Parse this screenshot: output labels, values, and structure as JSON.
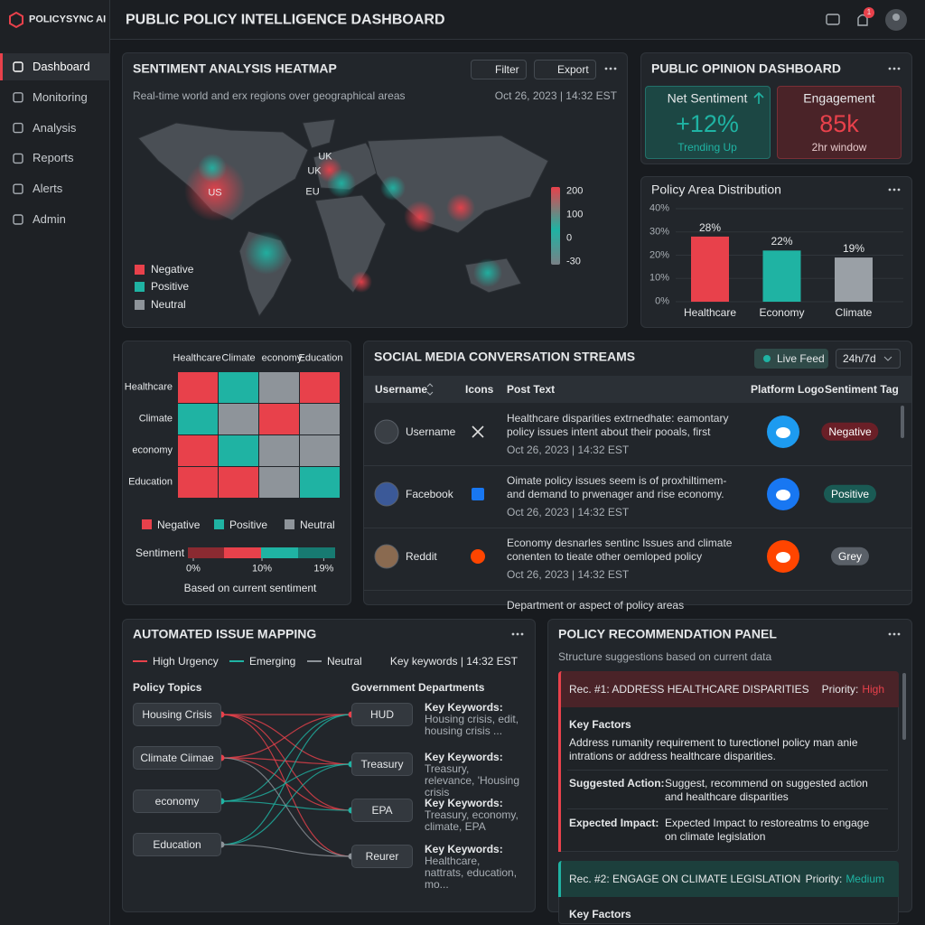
{
  "brand": "POLICYSYNC AI",
  "header": {
    "title": "PUBLIC POLICY INTELLIGENCE DASHBOARD",
    "notification_count": "1"
  },
  "nav": [
    "Dashboard",
    "Monitoring",
    "Analysis",
    "Reports",
    "Alerts",
    "Admin"
  ],
  "heatmap_panel": {
    "title": "SENTIMENT ANALYSIS HEATMAP",
    "filter": "Filter",
    "export": "Export",
    "subtitle": "Real-time world and erx regions over geographical areas",
    "timestamp": "Oct 26, 2023 | 14:32 EST",
    "regions": [
      "UK",
      "UK",
      "EU",
      "US"
    ],
    "legend": [
      "Negative",
      "Positive",
      "Neutral"
    ],
    "scale_ticks": [
      200,
      100,
      0,
      -30
    ]
  },
  "opinion": {
    "title": "PUBLIC OPINION DASHBOARD",
    "net_label": "Net Sentiment",
    "net_value": "+12%",
    "net_note": "Trending Up",
    "eng_label": "Engagement",
    "eng_value": "85k",
    "eng_note": "2hr window"
  },
  "policy_distribution": {
    "title": "Policy Area Distribution",
    "categories": [
      "Healthcare",
      "Economy",
      "Climate"
    ],
    "values": [
      28,
      22,
      19
    ],
    "value_labels": [
      "28%",
      "22%",
      "19%"
    ],
    "colors": [
      "#e8414b",
      "#1fb3a3",
      "#9aa0a6"
    ],
    "ylim": [
      0,
      40
    ],
    "yticks": [
      {
        "value": 0,
        "label": "0%"
      },
      {
        "value": 10,
        "label": "10%"
      },
      {
        "value": 20,
        "label": "20%"
      },
      {
        "value": 30,
        "label": "30%"
      },
      {
        "value": 40,
        "label": "40%"
      }
    ]
  },
  "matrix": {
    "columns": [
      "Healthcare",
      "Climate",
      "economy",
      "Education"
    ],
    "rows": [
      "Healthcare",
      "Climate",
      "economy",
      "Education"
    ],
    "cells": [
      [
        "negative",
        "positive",
        "neutral",
        "negative"
      ],
      [
        "positive",
        "neutral",
        "negative",
        "neutral"
      ],
      [
        "negative",
        "positive",
        "neutral",
        "neutral"
      ],
      [
        "negative",
        "negative",
        "neutral",
        "positive"
      ]
    ],
    "legend": [
      "Negative",
      "Positive",
      "Neutral"
    ],
    "sentiment_label": "Sentiment",
    "scale_ticks": [
      {
        "value": 0,
        "label": "0%"
      },
      {
        "value": 10,
        "label": "10%"
      },
      {
        "value": 19,
        "label": "19%"
      }
    ],
    "note": "Based on current sentiment"
  },
  "streams": {
    "title": "SOCIAL MEDIA CONVERSATION STREAMS",
    "live": "Live Feed",
    "range": "24h/7d",
    "columns": [
      "Username",
      "Icons",
      "Post Text",
      "Platform Logo",
      "Sentiment Tag"
    ],
    "rows": [
      {
        "user": "Username",
        "platform": "twitter",
        "post": "Healthcare disparities extrnedhate: eamontary policy issues intent about their pooals, first trude...",
        "time": "Oct 26, 2023 | 14:32 EST",
        "tag": "Negative",
        "tone": "negative"
      },
      {
        "user": "Facebook",
        "platform": "facebook",
        "post": "Oimate policy issues seem is of proxhiltimem-and demand to prwenager and rise economy.",
        "time": "Oct 26, 2023 | 14:32 EST",
        "tag": "Positive",
        "tone": "positive"
      },
      {
        "user": "Reddit",
        "platform": "reddit",
        "post": "Economy desnarles sentinc Issues and climate conenten to tieate other oemloped policy insukes...",
        "time": "Oct 26, 2023 | 14:32 EST",
        "tag": "Grey",
        "tone": "neutral"
      },
      {
        "post": "Department or aspect of policy areas"
      }
    ]
  },
  "issue_mapping": {
    "title": "AUTOMATED ISSUE MAPPING",
    "legend": [
      "High Urgency",
      "Emerging",
      "Neutral"
    ],
    "keywords_time": "Key keywords | 14:32 EST",
    "topics_heading": "Policy Topics",
    "departments_heading": "Government Departments",
    "topics": [
      "Housing Crisis",
      "Climate Ciimae",
      "economy",
      "Education"
    ],
    "departments": [
      {
        "name": "HUD",
        "keywords_label": "Key Keywords:",
        "keywords": "Housing crisis, edit, housing crisis ..."
      },
      {
        "name": "Treasury",
        "keywords_label": "Key Keywords:",
        "keywords": "Treasury, relevance, 'Housing crisis"
      },
      {
        "name": "EPA",
        "keywords_label": "Key Keywords:",
        "keywords": "Treasury, economy, climate, EPA"
      },
      {
        "name": "Reurer",
        "keywords_label": "Key Keywords:",
        "keywords": "Healthcare, nattrats, education, mo..."
      }
    ]
  },
  "recommendations": {
    "title": "POLICY RECOMMENDATION PANEL",
    "subtitle": "Structure suggestions based on current data",
    "items": [
      {
        "title": "Rec. #1: ADDRESS HEALTHCARE DISPARITIES",
        "priority_label": "Priority:",
        "priority": "High",
        "factors_label": "Key Factors",
        "factors": "Address rumanity requirement to turectionel policy man anie intrations or address healthcare disparities.",
        "action_label": "Suggested Action:",
        "action": "Suggest, recommend on suggested action and healthcare disparities",
        "impact_label": "Expected Impact:",
        "impact": "Expected Impact to restoreatms to engage on climate legislation"
      },
      {
        "title": "Rec. #2: ENGAGE ON CLIMATE LEGISLATION",
        "priority_label": "Priority:",
        "priority": "Medium",
        "factors_label": "Key Factors"
      }
    ]
  }
}
